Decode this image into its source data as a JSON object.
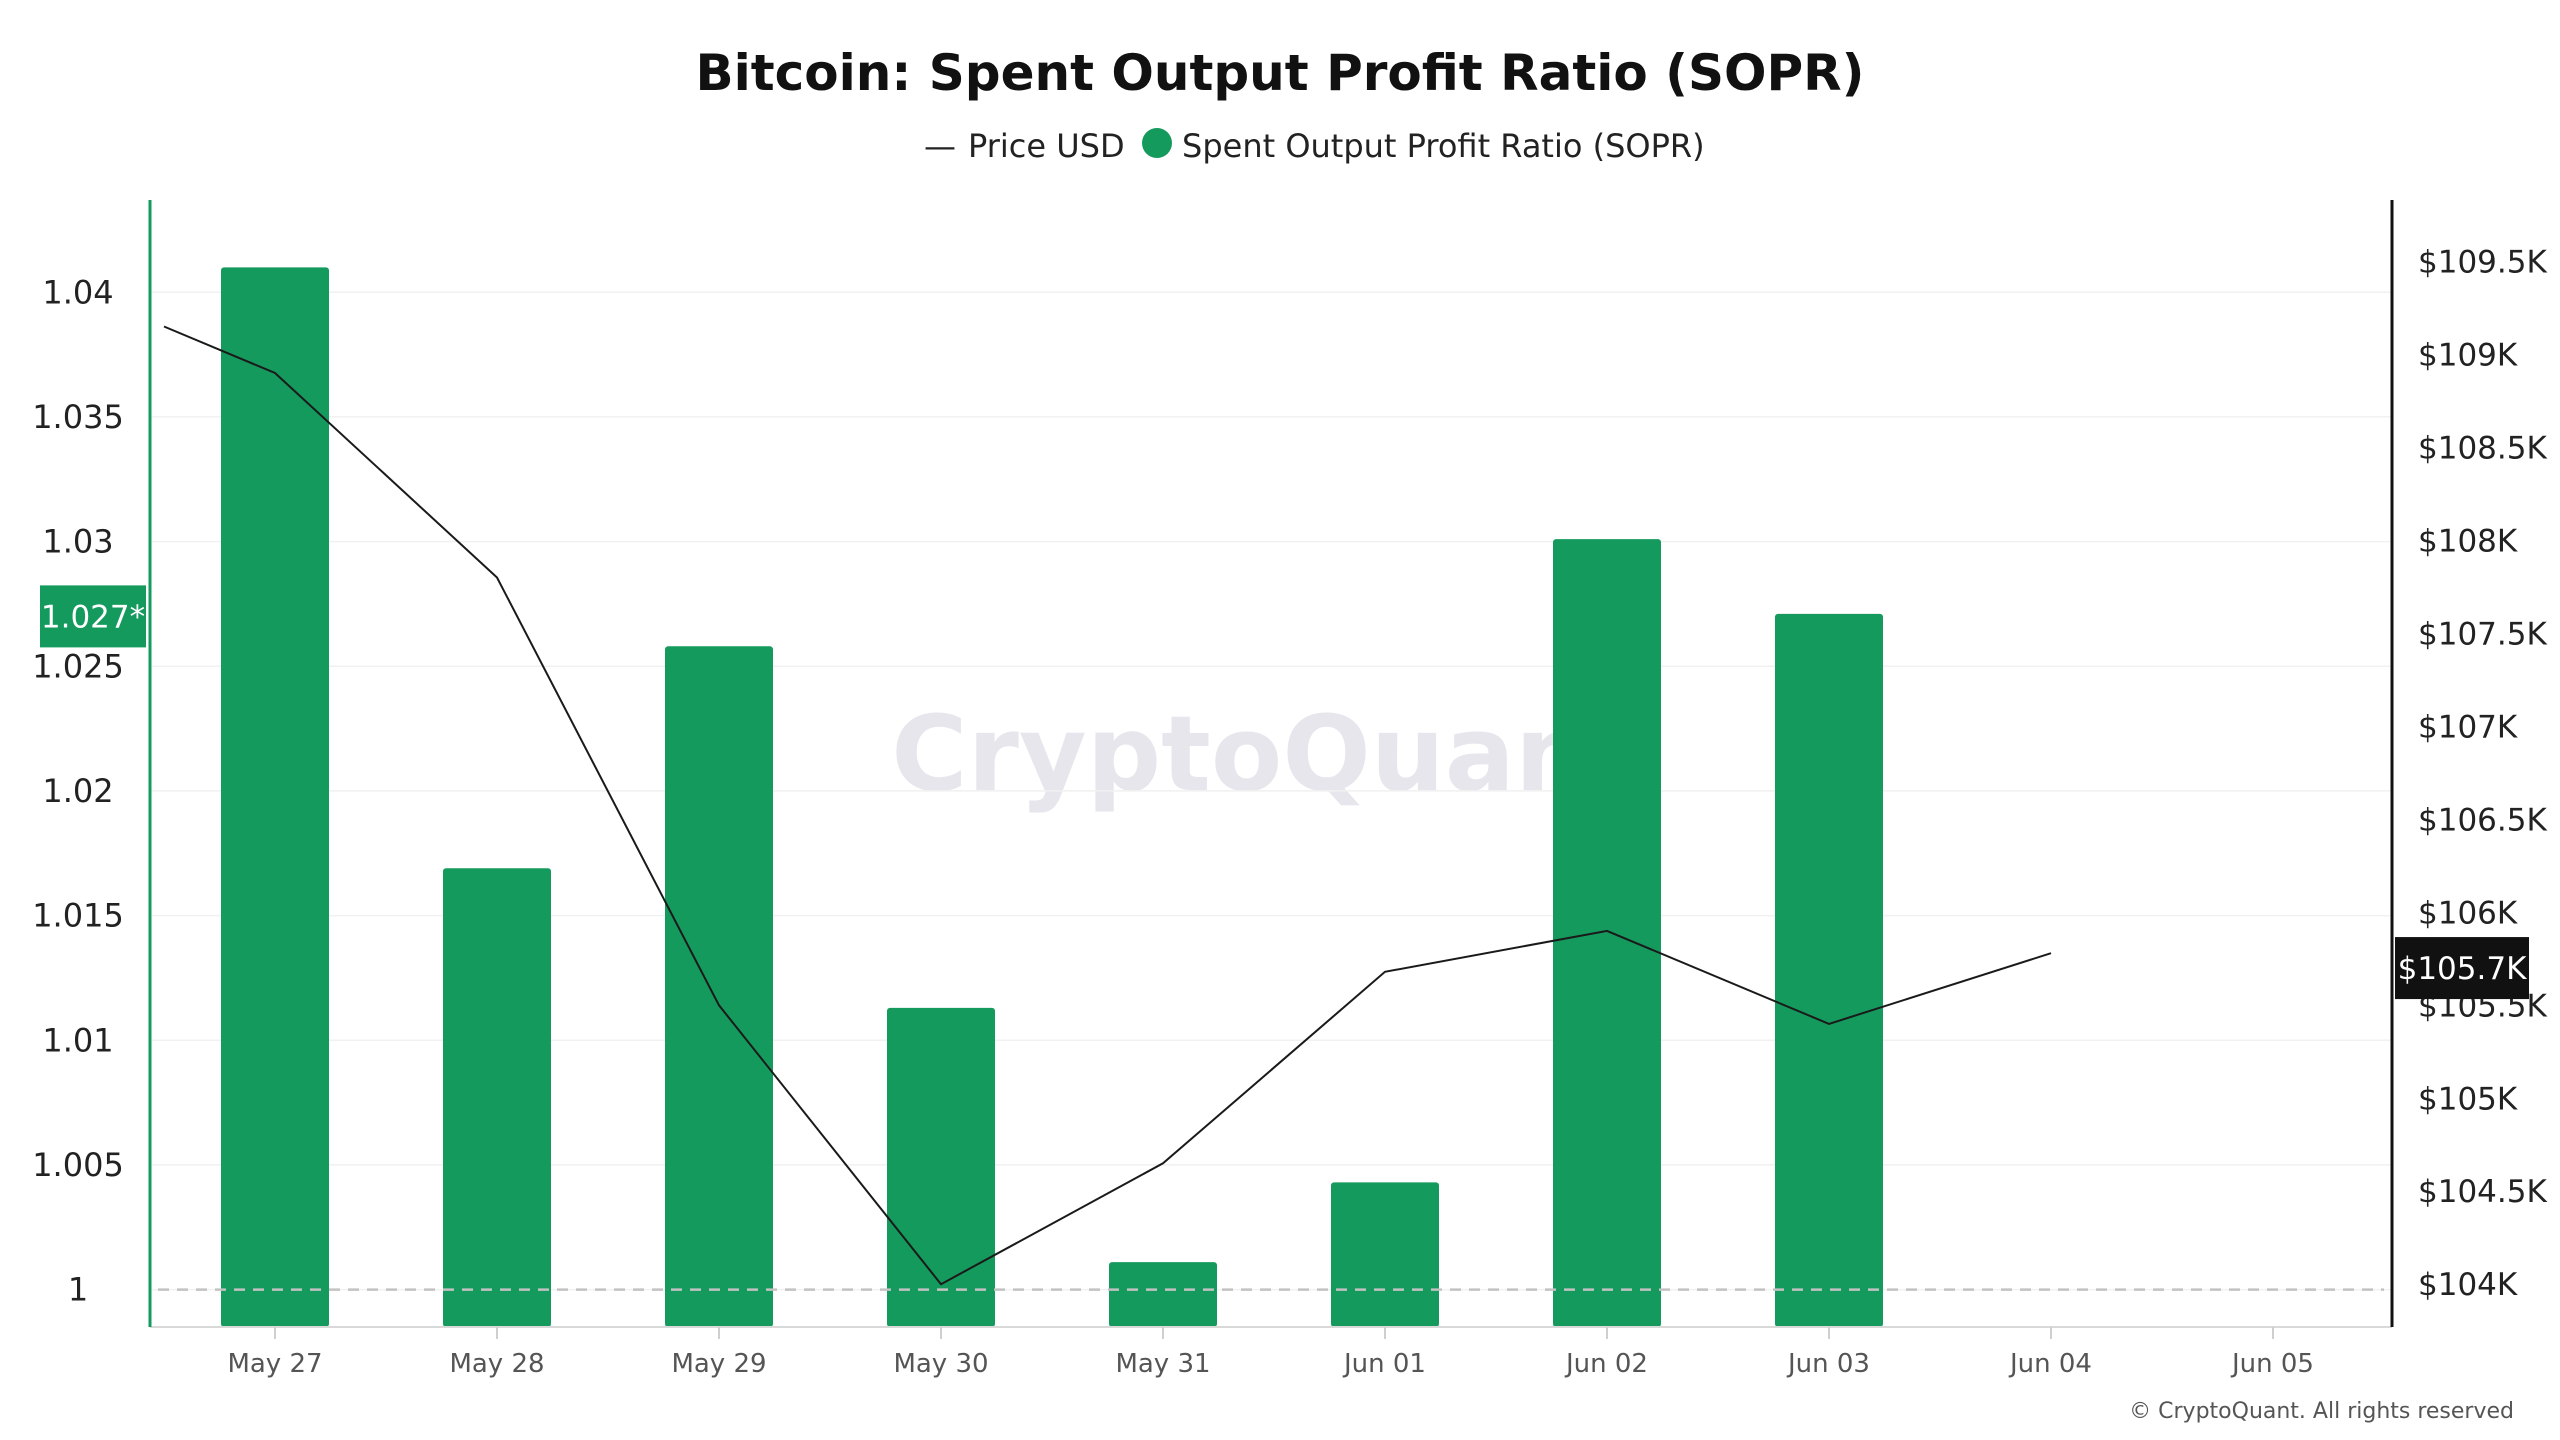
{
  "chart_data": {
    "type": "bar",
    "title": "Bitcoin: Spent Output Profit Ratio (SOPR)",
    "categories": [
      "May 27",
      "May 28",
      "May 29",
      "May 30",
      "May 31",
      "Jun 01",
      "Jun 02",
      "Jun 03",
      "Jun 04",
      "Jun 05"
    ],
    "series": [
      {
        "name": "Spent Output Profit Ratio (SOPR)",
        "kind": "bar",
        "axis": "left",
        "color": "#159a5e",
        "values": [
          1.041,
          1.0169,
          1.0258,
          1.0113,
          1.0011,
          1.0043,
          1.0301,
          1.0271,
          null,
          null
        ]
      },
      {
        "name": "Price USD",
        "kind": "line",
        "axis": "right",
        "color": "#1a1a1a",
        "x": [
          "May 26.5",
          "May 27",
          "May 28",
          "May 29",
          "May 30",
          "May 31",
          "Jun 01",
          "Jun 02",
          "Jun 03",
          "Jun 04"
        ],
        "values": [
          109150,
          108900,
          107800,
          105500,
          104000,
          104650,
          105680,
          105900,
          105400,
          105780
        ]
      }
    ],
    "left_axis": {
      "ylim": [
        0.9985,
        1.0437
      ],
      "ticks": [
        1,
        1.005,
        1.01,
        1.015,
        1.02,
        1.025,
        1.03,
        1.035,
        1.04
      ],
      "tick_labels": [
        "1",
        "1.005",
        "1.01",
        "1.015",
        "1.02",
        "1.025",
        "1.03",
        "1.035",
        "1.04"
      ]
    },
    "right_axis": {
      "ylim": [
        103770,
        109830
      ],
      "ticks": [
        104000,
        104500,
        105000,
        105500,
        106000,
        106500,
        107000,
        107500,
        108000,
        108500,
        109000,
        109500
      ],
      "tick_labels": [
        "$104K",
        "$104.5K",
        "$105K",
        "$105.5K",
        "$106K",
        "$106.5K",
        "$107K",
        "$107.5K",
        "$108K",
        "$108.5K",
        "$109K",
        "$109.5K"
      ]
    },
    "reference_line": 1,
    "current_sopr_label": "1.027*",
    "current_sopr_value": 1.027,
    "current_price_label": "$105.7K",
    "current_price_value": 105700,
    "legend": {
      "placement": "top-center",
      "items": [
        {
          "label": "Price USD",
          "symbol": "—"
        },
        {
          "label": "Spent Output Profit Ratio (SOPR)",
          "symbol": "●"
        }
      ]
    },
    "grid": true
  },
  "watermark": "CryptoQuant",
  "footer": "© CryptoQuant. All rights reserved",
  "colors": {
    "bar": "#159a5e",
    "line": "#1a1a1a",
    "left_axis": "#159a5e",
    "right_axis": "#111111",
    "badge_left": "#159a5e",
    "badge_right": "#111111"
  }
}
